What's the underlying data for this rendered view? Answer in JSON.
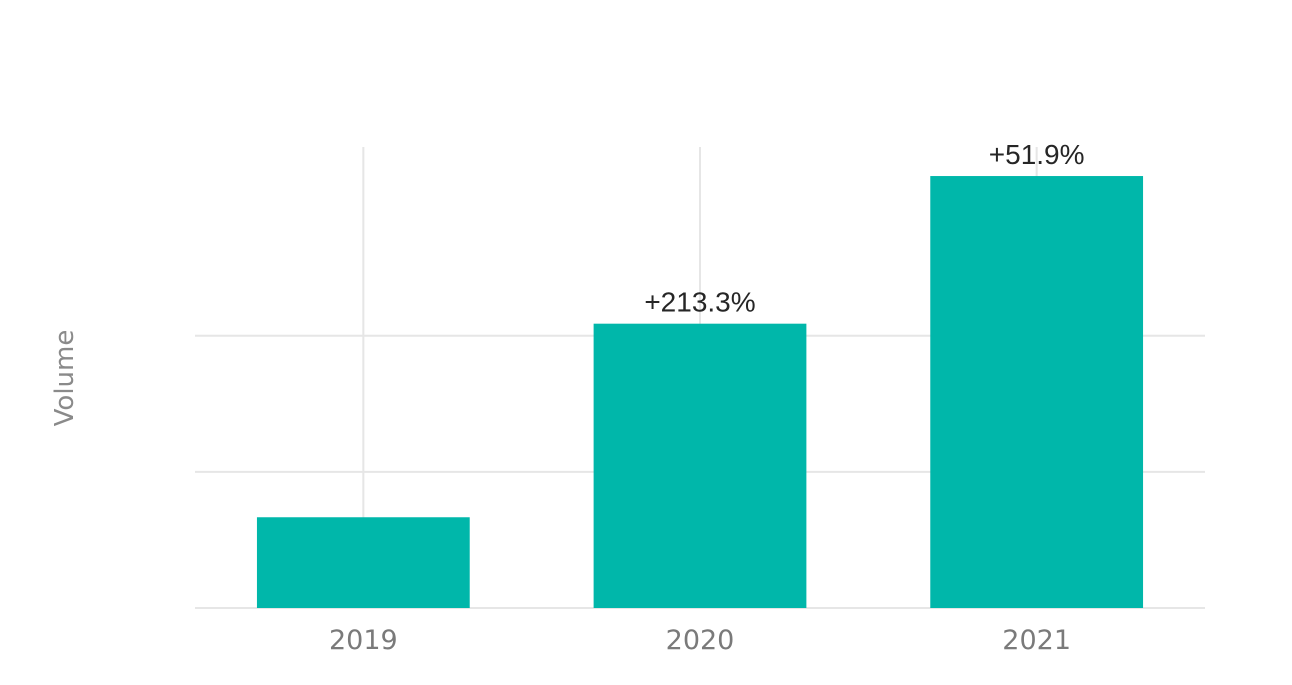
{
  "chart_data": {
    "type": "bar",
    "title": "",
    "xlabel": "",
    "ylabel": "Volume",
    "categories": [
      "2019",
      "2020",
      "2021"
    ],
    "values": [
      1.0,
      3.133,
      4.76
    ],
    "data_labels": [
      "",
      "+213.3%",
      "+51.9%"
    ],
    "ylim": [
      0,
      5.08
    ],
    "y_tick_labels_shown": false,
    "grid": true,
    "legend": "none",
    "colors": {
      "bar": "#00B7AA",
      "grid": "#E6E6E6",
      "tick_text": "#7A7A7A",
      "label_text": "#262626"
    }
  }
}
